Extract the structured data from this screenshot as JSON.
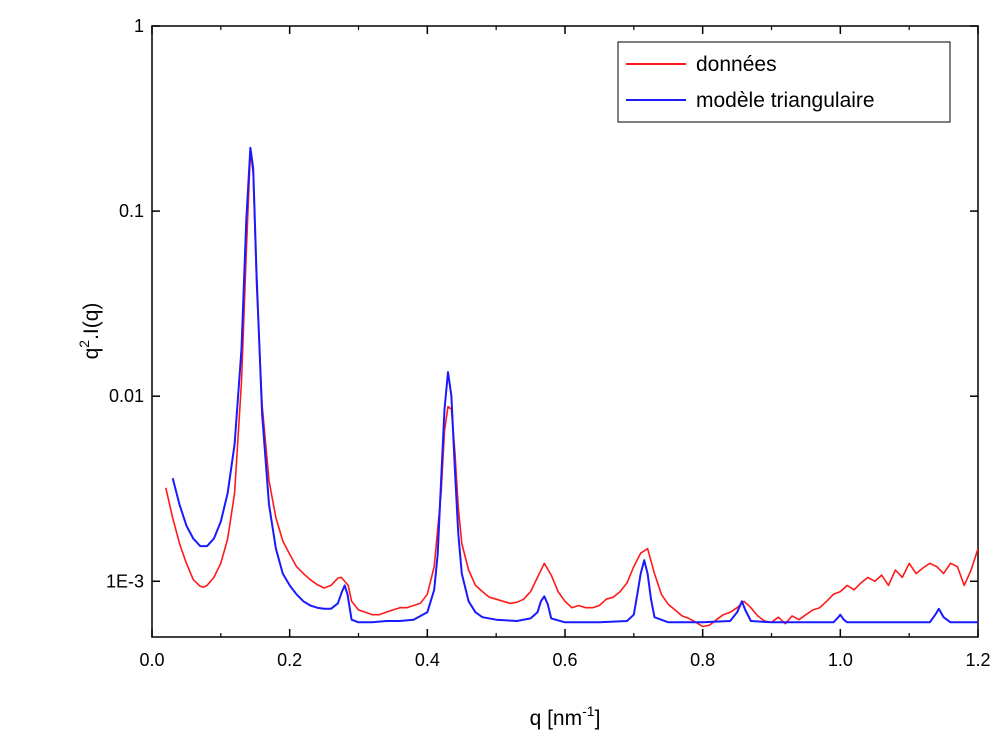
{
  "chart_data": {
    "type": "line",
    "xlabel": "q [nm",
    "xlabel_sup": "-1",
    "xlabel_end": "]",
    "ylabel_base": "q",
    "ylabel_sup": "2",
    "ylabel_end": ".I(q)",
    "y_scale": "log",
    "xlim": [
      0.0,
      1.2
    ],
    "ylim": [
      0.0005,
      1
    ],
    "x_ticks": [
      0.0,
      0.2,
      0.4,
      0.6,
      0.8,
      1.0,
      1.2
    ],
    "x_tick_labels": [
      "0.0",
      "0.2",
      "0.4",
      "0.6",
      "0.8",
      "1.0",
      "1.2"
    ],
    "y_ticks": [
      0.001,
      0.01,
      0.1,
      1
    ],
    "y_tick_labels": [
      "1E-3",
      "0.01",
      "0.1",
      "1"
    ],
    "grid": false,
    "legend": {
      "position": "top-right"
    },
    "series": [
      {
        "name": "données",
        "color": "#ff1a1a",
        "points": [
          [
            0.02,
            0.0032
          ],
          [
            0.03,
            0.0022
          ],
          [
            0.04,
            0.0016
          ],
          [
            0.05,
            0.00125
          ],
          [
            0.06,
            0.00102
          ],
          [
            0.07,
            0.00094
          ],
          [
            0.075,
            0.00093
          ],
          [
            0.08,
            0.00095
          ],
          [
            0.09,
            0.00105
          ],
          [
            0.1,
            0.00125
          ],
          [
            0.11,
            0.0017
          ],
          [
            0.12,
            0.003
          ],
          [
            0.13,
            0.012
          ],
          [
            0.137,
            0.06
          ],
          [
            0.143,
            0.21
          ],
          [
            0.147,
            0.16
          ],
          [
            0.152,
            0.04
          ],
          [
            0.16,
            0.009
          ],
          [
            0.17,
            0.0035
          ],
          [
            0.18,
            0.0022
          ],
          [
            0.19,
            0.00165
          ],
          [
            0.2,
            0.0014
          ],
          [
            0.21,
            0.0012
          ],
          [
            0.22,
            0.0011
          ],
          [
            0.23,
            0.00102
          ],
          [
            0.24,
            0.00096
          ],
          [
            0.25,
            0.00092
          ],
          [
            0.26,
            0.00095
          ],
          [
            0.27,
            0.00104
          ],
          [
            0.275,
            0.00105
          ],
          [
            0.285,
            0.00095
          ],
          [
            0.29,
            0.00078
          ],
          [
            0.3,
            0.0007
          ],
          [
            0.31,
            0.00068
          ],
          [
            0.32,
            0.00066
          ],
          [
            0.33,
            0.00066
          ],
          [
            0.34,
            0.00068
          ],
          [
            0.35,
            0.0007
          ],
          [
            0.36,
            0.00072
          ],
          [
            0.37,
            0.00072
          ],
          [
            0.38,
            0.00074
          ],
          [
            0.39,
            0.00076
          ],
          [
            0.4,
            0.00085
          ],
          [
            0.41,
            0.0012
          ],
          [
            0.42,
            0.003
          ],
          [
            0.425,
            0.0065
          ],
          [
            0.43,
            0.0088
          ],
          [
            0.435,
            0.0085
          ],
          [
            0.44,
            0.005
          ],
          [
            0.445,
            0.0025
          ],
          [
            0.45,
            0.0016
          ],
          [
            0.46,
            0.00115
          ],
          [
            0.47,
            0.00095
          ],
          [
            0.48,
            0.00088
          ],
          [
            0.49,
            0.00082
          ],
          [
            0.5,
            0.0008
          ],
          [
            0.51,
            0.00078
          ],
          [
            0.52,
            0.00076
          ],
          [
            0.53,
            0.00077
          ],
          [
            0.54,
            0.0008
          ],
          [
            0.55,
            0.00088
          ],
          [
            0.56,
            0.00105
          ],
          [
            0.57,
            0.00125
          ],
          [
            0.58,
            0.00108
          ],
          [
            0.59,
            0.00088
          ],
          [
            0.6,
            0.00078
          ],
          [
            0.61,
            0.00072
          ],
          [
            0.62,
            0.00074
          ],
          [
            0.63,
            0.00072
          ],
          [
            0.64,
            0.00072
          ],
          [
            0.65,
            0.00074
          ],
          [
            0.66,
            0.0008
          ],
          [
            0.67,
            0.00082
          ],
          [
            0.68,
            0.00088
          ],
          [
            0.69,
            0.00098
          ],
          [
            0.7,
            0.0012
          ],
          [
            0.71,
            0.00142
          ],
          [
            0.72,
            0.0015
          ],
          [
            0.73,
            0.0011
          ],
          [
            0.74,
            0.00085
          ],
          [
            0.75,
            0.00075
          ],
          [
            0.76,
            0.0007
          ],
          [
            0.77,
            0.00065
          ],
          [
            0.78,
            0.00063
          ],
          [
            0.79,
            0.0006
          ],
          [
            0.8,
            0.00057
          ],
          [
            0.81,
            0.00058
          ],
          [
            0.82,
            0.00062
          ],
          [
            0.83,
            0.00066
          ],
          [
            0.84,
            0.00068
          ],
          [
            0.85,
            0.00072
          ],
          [
            0.86,
            0.00078
          ],
          [
            0.87,
            0.00072
          ],
          [
            0.88,
            0.00065
          ],
          [
            0.89,
            0.00061
          ],
          [
            0.9,
            0.0006
          ],
          [
            0.91,
            0.00064
          ],
          [
            0.92,
            0.00059
          ],
          [
            0.93,
            0.00065
          ],
          [
            0.94,
            0.00062
          ],
          [
            0.95,
            0.00066
          ],
          [
            0.96,
            0.0007
          ],
          [
            0.97,
            0.00072
          ],
          [
            0.98,
            0.00078
          ],
          [
            0.99,
            0.00085
          ],
          [
            1.0,
            0.00088
          ],
          [
            1.01,
            0.00095
          ],
          [
            1.02,
            0.0009
          ],
          [
            1.03,
            0.00098
          ],
          [
            1.04,
            0.00105
          ],
          [
            1.05,
            0.001
          ],
          [
            1.06,
            0.00108
          ],
          [
            1.07,
            0.00095
          ],
          [
            1.08,
            0.00115
          ],
          [
            1.09,
            0.00105
          ],
          [
            1.1,
            0.00125
          ],
          [
            1.11,
            0.0011
          ],
          [
            1.12,
            0.00118
          ],
          [
            1.13,
            0.00125
          ],
          [
            1.14,
            0.0012
          ],
          [
            1.15,
            0.0011
          ],
          [
            1.16,
            0.00125
          ],
          [
            1.17,
            0.0012
          ],
          [
            1.18,
            0.00095
          ],
          [
            1.19,
            0.00115
          ],
          [
            1.2,
            0.0015
          ]
        ]
      },
      {
        "name": "modèle triangulaire",
        "color": "#1a1aff",
        "points": [
          [
            0.03,
            0.0036
          ],
          [
            0.04,
            0.0026
          ],
          [
            0.05,
            0.002
          ],
          [
            0.06,
            0.0017
          ],
          [
            0.07,
            0.00155
          ],
          [
            0.08,
            0.00155
          ],
          [
            0.09,
            0.0017
          ],
          [
            0.1,
            0.0021
          ],
          [
            0.11,
            0.003
          ],
          [
            0.12,
            0.0055
          ],
          [
            0.13,
            0.018
          ],
          [
            0.137,
            0.09
          ],
          [
            0.143,
            0.22
          ],
          [
            0.147,
            0.17
          ],
          [
            0.152,
            0.045
          ],
          [
            0.16,
            0.008
          ],
          [
            0.17,
            0.0026
          ],
          [
            0.18,
            0.0015
          ],
          [
            0.19,
            0.0011
          ],
          [
            0.2,
            0.00095
          ],
          [
            0.21,
            0.00085
          ],
          [
            0.22,
            0.00078
          ],
          [
            0.23,
            0.00074
          ],
          [
            0.24,
            0.00072
          ],
          [
            0.25,
            0.00071
          ],
          [
            0.26,
            0.00071
          ],
          [
            0.27,
            0.00076
          ],
          [
            0.276,
            0.00088
          ],
          [
            0.28,
            0.00095
          ],
          [
            0.284,
            0.00085
          ],
          [
            0.29,
            0.00062
          ],
          [
            0.3,
            0.0006
          ],
          [
            0.32,
            0.0006
          ],
          [
            0.34,
            0.00061
          ],
          [
            0.36,
            0.00061
          ],
          [
            0.38,
            0.00062
          ],
          [
            0.4,
            0.00068
          ],
          [
            0.41,
            0.0009
          ],
          [
            0.415,
            0.0014
          ],
          [
            0.42,
            0.0035
          ],
          [
            0.425,
            0.0085
          ],
          [
            0.43,
            0.0135
          ],
          [
            0.435,
            0.01
          ],
          [
            0.44,
            0.004
          ],
          [
            0.445,
            0.0018
          ],
          [
            0.45,
            0.0011
          ],
          [
            0.46,
            0.00078
          ],
          [
            0.47,
            0.00068
          ],
          [
            0.48,
            0.00064
          ],
          [
            0.5,
            0.00062
          ],
          [
            0.53,
            0.00061
          ],
          [
            0.55,
            0.00063
          ],
          [
            0.56,
            0.00068
          ],
          [
            0.565,
            0.00078
          ],
          [
            0.57,
            0.00083
          ],
          [
            0.575,
            0.00075
          ],
          [
            0.58,
            0.00063
          ],
          [
            0.6,
            0.0006
          ],
          [
            0.65,
            0.0006
          ],
          [
            0.69,
            0.00061
          ],
          [
            0.7,
            0.00066
          ],
          [
            0.705,
            0.00085
          ],
          [
            0.71,
            0.0011
          ],
          [
            0.715,
            0.0013
          ],
          [
            0.72,
            0.0011
          ],
          [
            0.725,
            0.0008
          ],
          [
            0.73,
            0.00064
          ],
          [
            0.75,
            0.0006
          ],
          [
            0.8,
            0.0006
          ],
          [
            0.84,
            0.00061
          ],
          [
            0.85,
            0.00068
          ],
          [
            0.857,
            0.00078
          ],
          [
            0.862,
            0.0007
          ],
          [
            0.87,
            0.00061
          ],
          [
            0.9,
            0.0006
          ],
          [
            0.99,
            0.0006
          ],
          [
            0.997,
            0.00064
          ],
          [
            1.0,
            0.00066
          ],
          [
            1.005,
            0.00062
          ],
          [
            1.01,
            0.0006
          ],
          [
            1.13,
            0.0006
          ],
          [
            1.138,
            0.00066
          ],
          [
            1.143,
            0.00071
          ],
          [
            1.15,
            0.00064
          ],
          [
            1.16,
            0.0006
          ],
          [
            1.2,
            0.0006
          ]
        ]
      }
    ]
  }
}
